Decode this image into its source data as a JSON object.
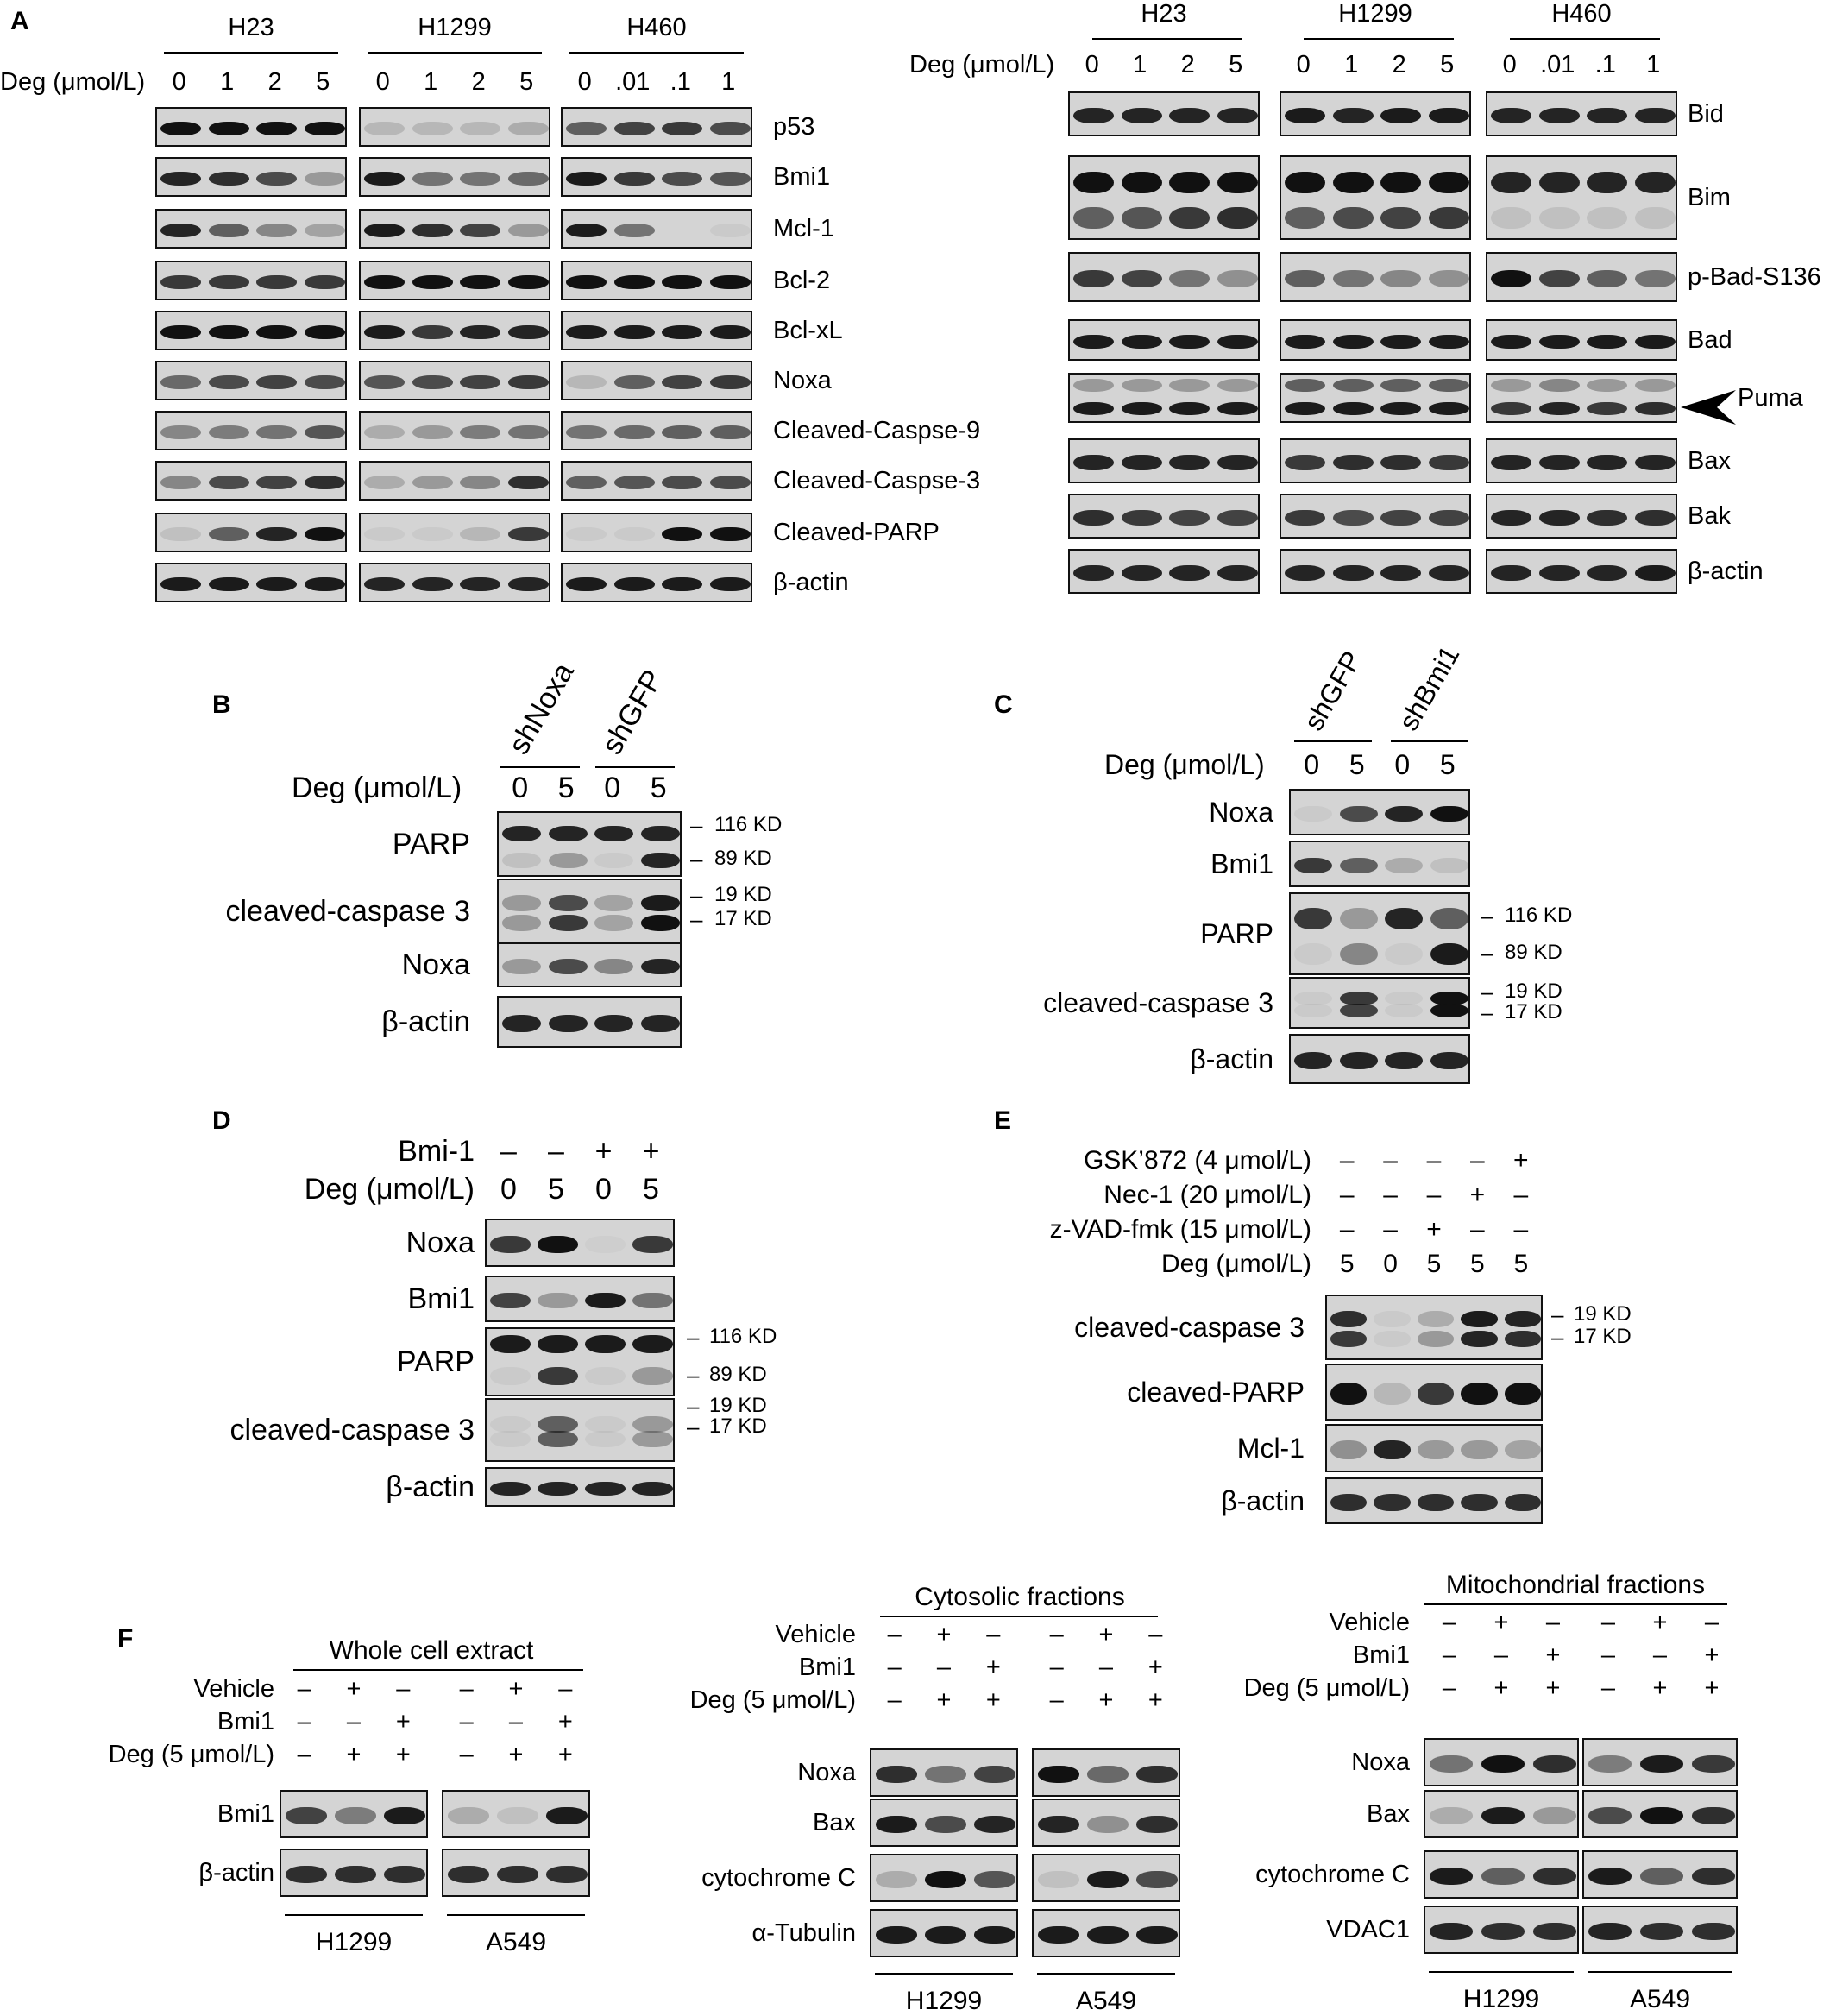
{
  "A": {
    "letter": "A",
    "left": {
      "cells": [
        "H23",
        "H1299",
        "H460"
      ],
      "deg_label": "Deg (μmol/L)",
      "doses": [
        [
          "0",
          "1",
          "2",
          "5"
        ],
        [
          "0",
          "1",
          "2",
          "5"
        ],
        [
          "0",
          ".01",
          ".1",
          "1"
        ]
      ],
      "rows": [
        "p53",
        "Bmi1",
        "Mcl-1",
        "Bcl-2",
        "Bcl-xL",
        "Noxa",
        "Cleaved-Caspse-9",
        "Cleaved-Caspse-3",
        "Cleaved-PARP",
        "β-actin"
      ]
    },
    "right": {
      "cells": [
        "H23",
        "H1299",
        "H460"
      ],
      "deg_label": "Deg (μmol/L)",
      "doses": [
        [
          "0",
          "1",
          "2",
          "5"
        ],
        [
          "0",
          "1",
          "2",
          "5"
        ],
        [
          "0",
          ".01",
          ".1",
          "1"
        ]
      ],
      "rows": [
        "Bid",
        "Bim",
        "p-Bad-S136",
        "Bad",
        "Puma",
        "Bax",
        "Bak",
        "β-actin"
      ]
    }
  },
  "B": {
    "letter": "B",
    "groups": [
      "shNoxa",
      "shGFP"
    ],
    "deg_label": "Deg (μmol/L)",
    "doses": [
      "0",
      "5",
      "0",
      "5"
    ],
    "rows": [
      "PARP",
      "cleaved-caspase 3",
      "Noxa",
      "β-actin"
    ],
    "markers": [
      "116 KD",
      "89 KD",
      "19 KD",
      "17 KD"
    ]
  },
  "C": {
    "letter": "C",
    "groups": [
      "shGFP",
      "shBmi1"
    ],
    "deg_label": "Deg (μmol/L)",
    "doses": [
      "0",
      "5",
      "0",
      "5"
    ],
    "rows": [
      "Noxa",
      "Bmi1",
      "PARP",
      "cleaved-caspase 3",
      "β-actin"
    ],
    "markers": [
      "116 KD",
      "89 KD",
      "19 KD",
      "17 KD"
    ]
  },
  "D": {
    "letter": "D",
    "conditions": [
      {
        "label": "Bmi-1",
        "values": [
          "–",
          "–",
          "+",
          "+"
        ]
      },
      {
        "label": "Deg (μmol/L)",
        "values": [
          "0",
          "5",
          "0",
          "5"
        ]
      }
    ],
    "rows": [
      "Noxa",
      "Bmi1",
      "PARP",
      "cleaved-caspase 3",
      "β-actin"
    ],
    "markers": [
      "116 KD",
      "89 KD",
      "19 KD",
      "17 KD"
    ]
  },
  "E": {
    "letter": "E",
    "conditions": [
      {
        "label": "GSK’872 (4 μmol/L)",
        "values": [
          "–",
          "–",
          "–",
          "–",
          "+"
        ]
      },
      {
        "label": "Nec-1 (20 μmol/L)",
        "values": [
          "–",
          "–",
          "–",
          "+",
          "–"
        ]
      },
      {
        "label": "z-VAD-fmk (15 μmol/L)",
        "values": [
          "–",
          "–",
          "+",
          "–",
          "–"
        ]
      },
      {
        "label": "Deg (μmol/L)",
        "values": [
          "5",
          "0",
          "5",
          "5",
          "5"
        ]
      }
    ],
    "rows": [
      "cleaved-caspase 3",
      "cleaved-PARP",
      "Mcl-1",
      "β-actin"
    ],
    "markers": [
      "19 KD",
      "17 KD"
    ]
  },
  "F": {
    "letter": "F",
    "whole": {
      "title": "Whole cell extract",
      "conditions": [
        {
          "label": "Vehicle",
          "values": [
            "–",
            "+",
            "–",
            "–",
            "+",
            "–"
          ]
        },
        {
          "label": "Bmi1",
          "values": [
            "–",
            "–",
            "+",
            "–",
            "–",
            "+"
          ]
        },
        {
          "label": "Deg (5 μmol/L)",
          "values": [
            "–",
            "+",
            "+",
            "–",
            "+",
            "+"
          ]
        }
      ],
      "rows": [
        "Bmi1",
        "β-actin"
      ],
      "cells": [
        "H1299",
        "A549"
      ]
    },
    "cyto": {
      "title": "Cytosolic fractions",
      "conditions": [
        {
          "label": "Vehicle",
          "values": [
            "–",
            "+",
            "–",
            "–",
            "+",
            "–"
          ]
        },
        {
          "label": "Bmi1",
          "values": [
            "–",
            "–",
            "+",
            "–",
            "–",
            "+"
          ]
        },
        {
          "label": "Deg (5 μmol/L)",
          "values": [
            "–",
            "+",
            "+",
            "–",
            "+",
            "+"
          ]
        }
      ],
      "rows": [
        "Noxa",
        "Bax",
        "cytochrome C",
        "α-Tubulin"
      ],
      "cells": [
        "H1299",
        "A549"
      ]
    },
    "mito": {
      "title": "Mitochondrial fractions",
      "conditions": [
        {
          "label": "Vehicle",
          "values": [
            "–",
            "+",
            "–",
            "–",
            "+",
            "–"
          ]
        },
        {
          "label": "Bmi1",
          "values": [
            "–",
            "–",
            "+",
            "–",
            "–",
            "+"
          ]
        },
        {
          "label": "Deg (5 μmol/L)",
          "values": [
            "–",
            "+",
            "+",
            "–",
            "+",
            "+"
          ]
        }
      ],
      "rows": [
        "Noxa",
        "Bax",
        "cytochrome C",
        "VDAC1"
      ],
      "cells": [
        "H1299",
        "A549"
      ]
    }
  }
}
